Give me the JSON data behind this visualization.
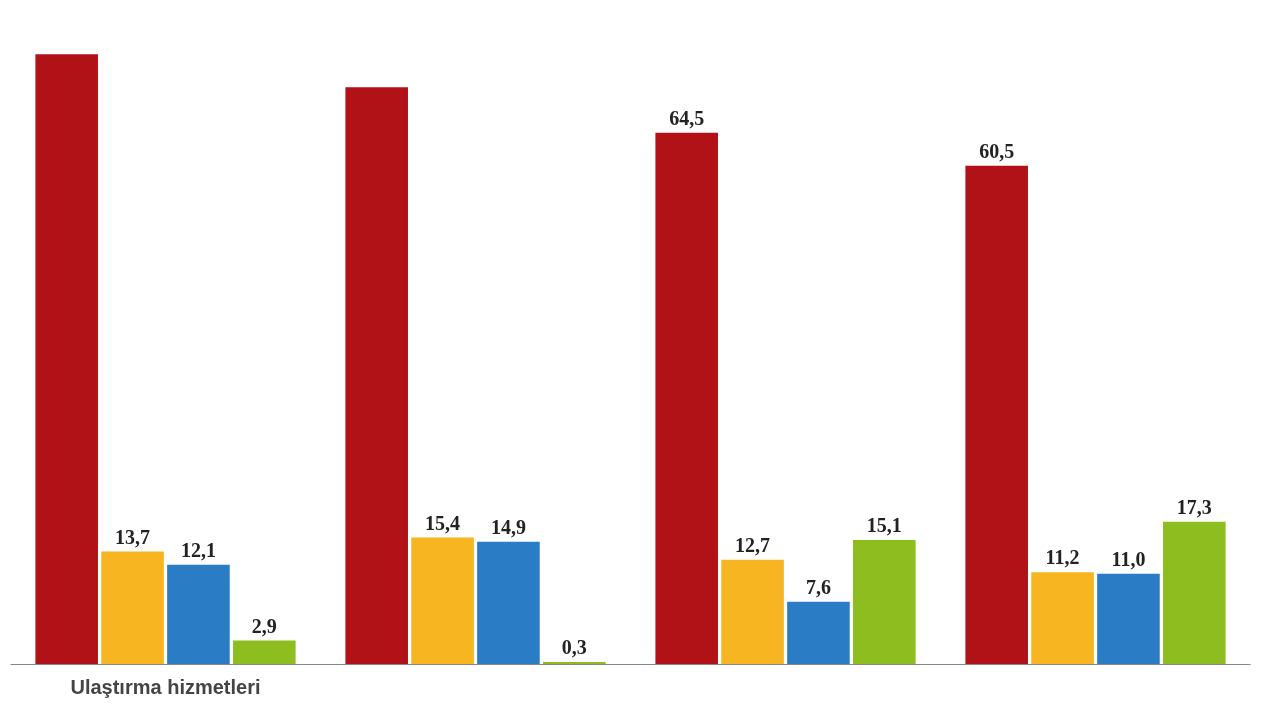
{
  "chart_data": {
    "type": "bar",
    "categories": [
      "Ulaştırma hizmetleri",
      null,
      null,
      null
    ],
    "series": [
      {
        "color": "#b01218",
        "values": [
          74,
          70,
          64.5,
          60.5
        ],
        "value_labels": [
          null,
          null,
          "64,5",
          "60,5"
        ]
      },
      {
        "color": "#f7b522",
        "values": [
          13.7,
          15.4,
          12.7,
          11.2
        ],
        "value_labels": [
          "13,7",
          "15,4",
          "12,7",
          "11,2"
        ]
      },
      {
        "color": "#2a7dc4",
        "values": [
          12.1,
          14.9,
          7.6,
          11.0
        ],
        "value_labels": [
          "12,1",
          "14,9",
          "7,6",
          "11,0"
        ]
      },
      {
        "color": "#8dbd1e",
        "values": [
          2.9,
          0.3,
          15.1,
          17.3
        ],
        "value_labels": [
          "2,9",
          "0,3",
          "15,1",
          "17,3"
        ]
      }
    ]
  }
}
